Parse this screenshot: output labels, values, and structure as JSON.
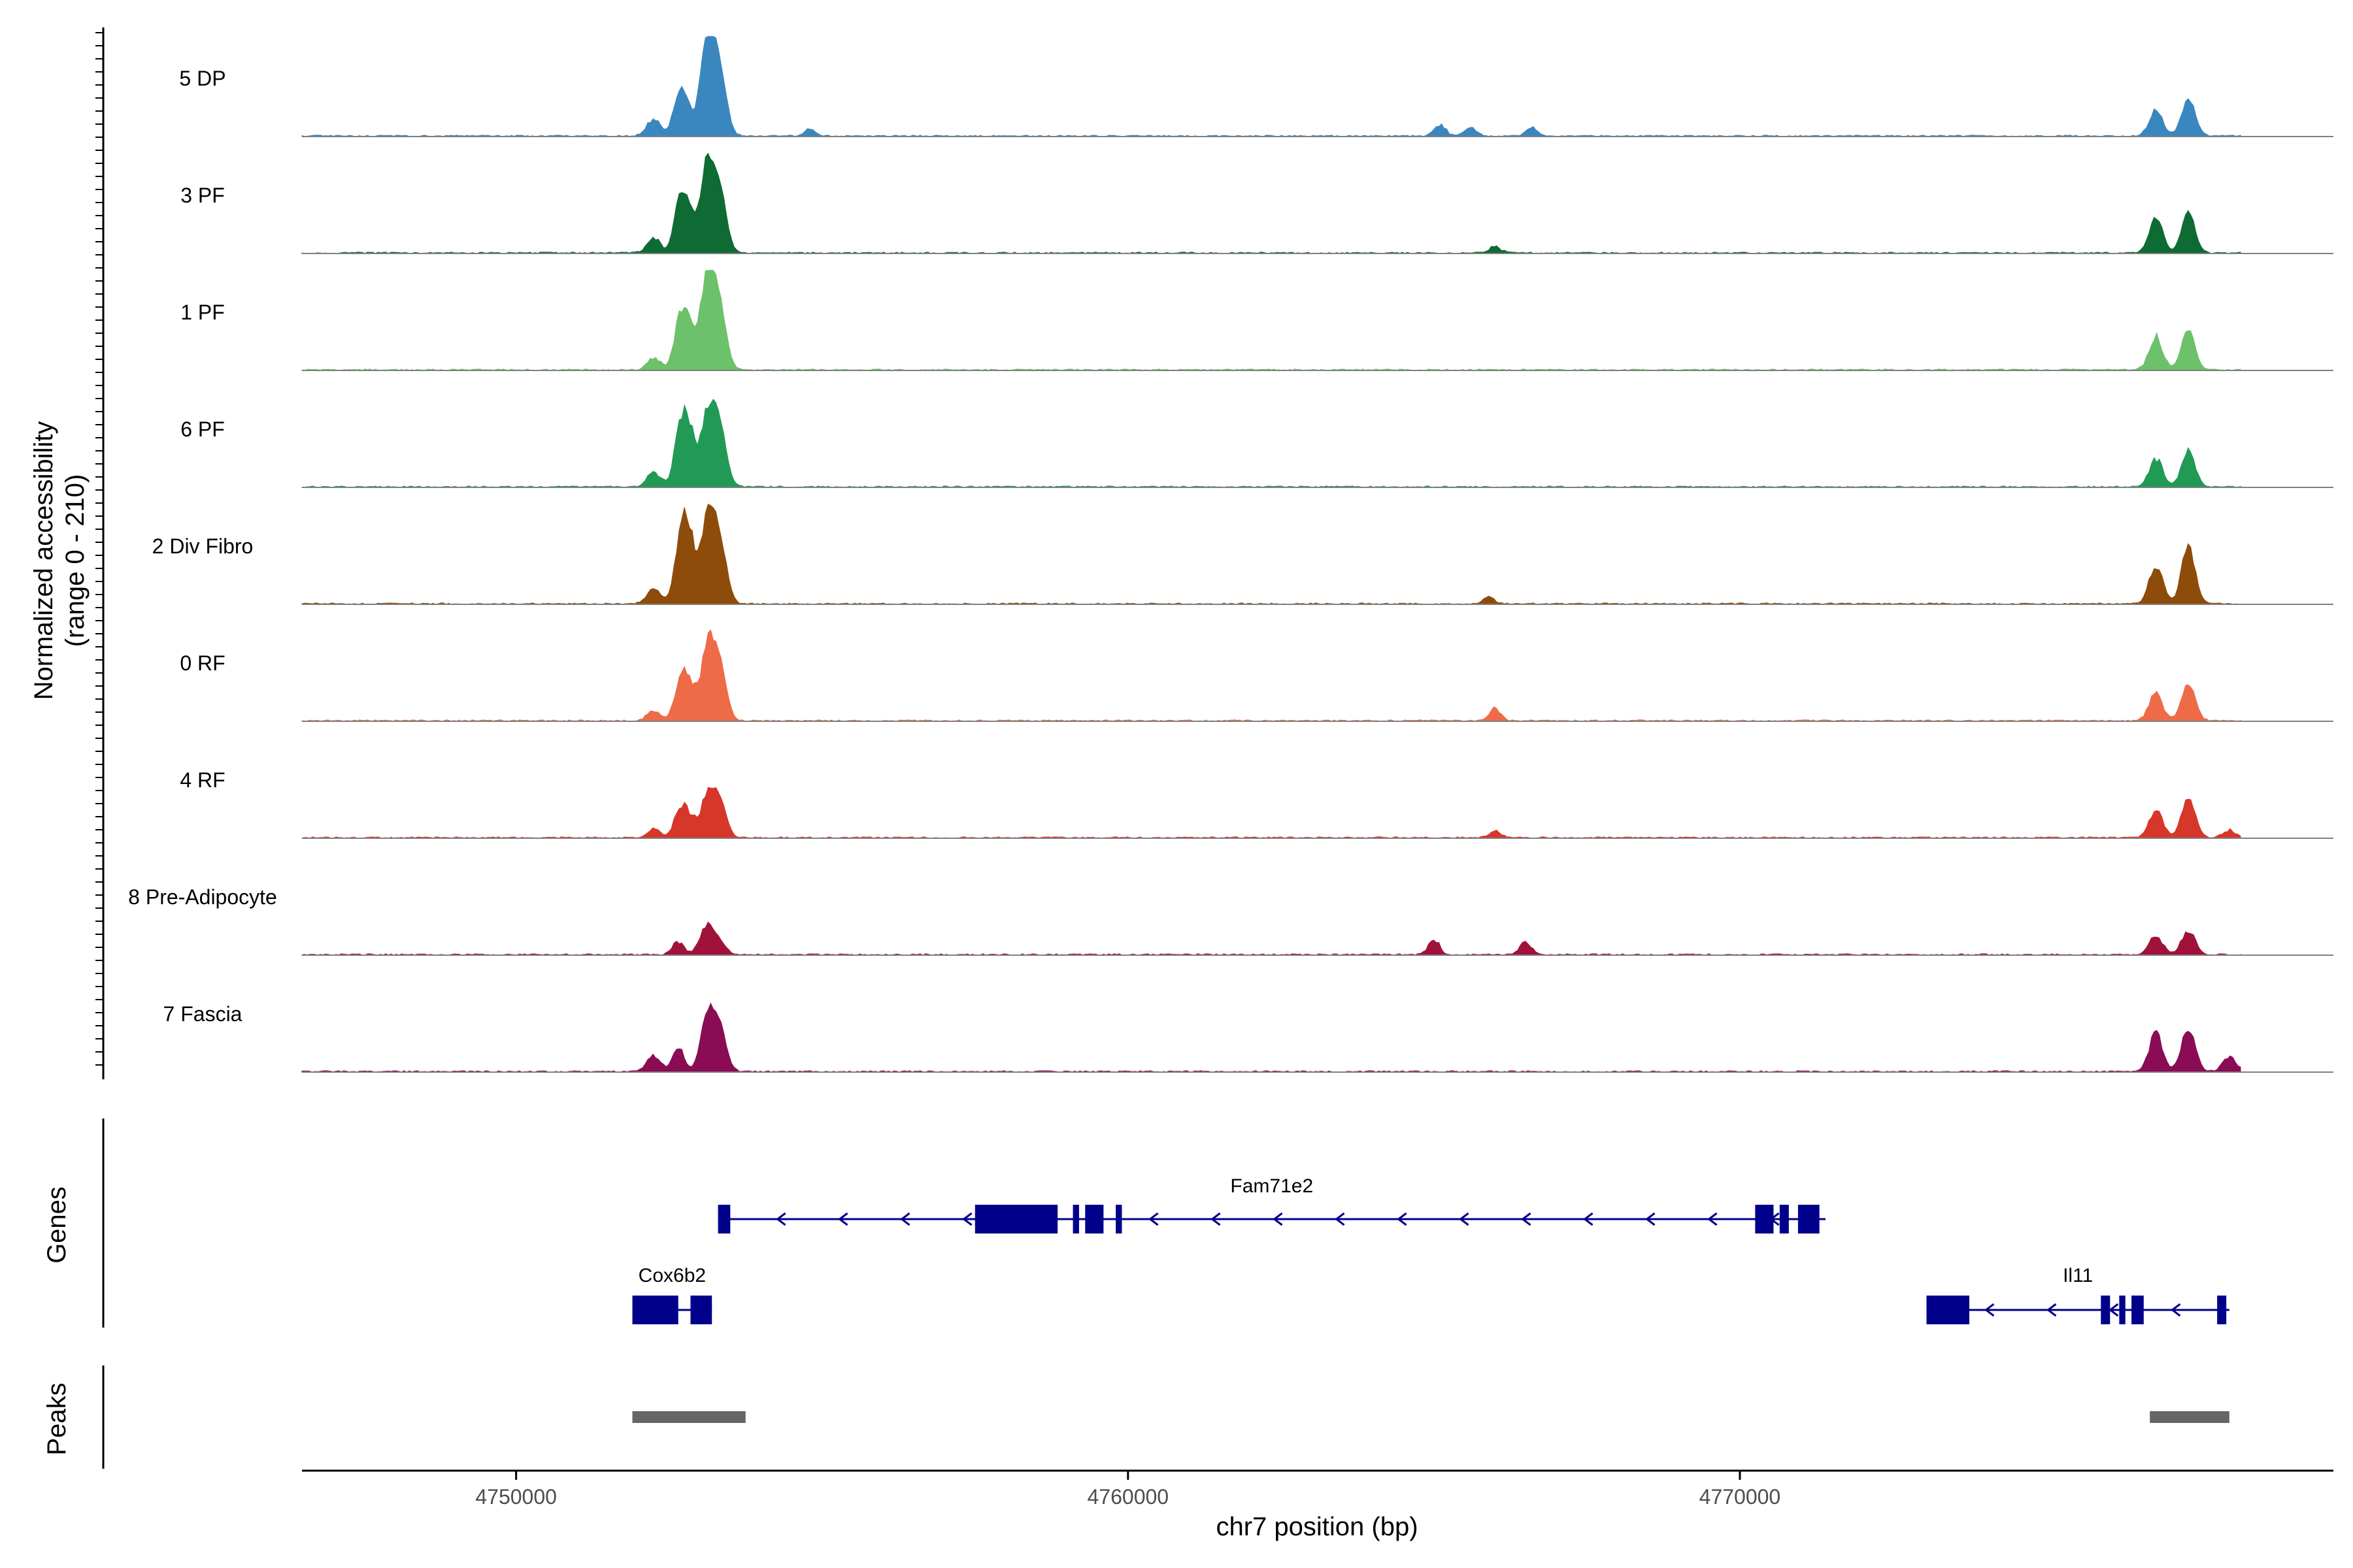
{
  "chart_data": {
    "type": "genome-browser-coverage",
    "title": "",
    "ylabel_line1": "Normalized accessibility",
    "ylabel_line2": "(range 0 - 210)",
    "y_range": [
      0,
      210
    ],
    "xlabel": "chr7 position (bp)",
    "x_range": [
      4746500,
      4779700
    ],
    "x_ticks": [
      4750000,
      4760000,
      4770000
    ],
    "x_tick_labels": [
      "4750000",
      "4760000",
      "4770000"
    ],
    "tracks": [
      {
        "label": "5 DP",
        "color": "#3A87C0",
        "peaks": [
          [
            4752650,
            2,
            70,
            0.28
          ],
          [
            4752800,
            3,
            58,
            0.3
          ],
          [
            4753130,
            3,
            200,
            0.18
          ],
          [
            4753330,
            3,
            130,
            0.1
          ],
          [
            4752250,
            3,
            35,
            0.3
          ],
          [
            4754800,
            1,
            18,
            0.5
          ],
          [
            4765100,
            2,
            25,
            0.4
          ],
          [
            4765600,
            2,
            18,
            0.3
          ],
          [
            4766600,
            2,
            18,
            0.3
          ],
          [
            4776800,
            3,
            58,
            0.3
          ],
          [
            4777330,
            3,
            78,
            0.15
          ]
        ]
      },
      {
        "label": "3 PF",
        "color": "#0E6B33",
        "peaks": [
          [
            4752650,
            2,
            70,
            0.28
          ],
          [
            4752800,
            3,
            108,
            0.2
          ],
          [
            4753130,
            3,
            182,
            0.18
          ],
          [
            4753330,
            3,
            120,
            0.1
          ],
          [
            4752250,
            3,
            30,
            0.3
          ],
          [
            4766000,
            2,
            15,
            0.5
          ],
          [
            4776800,
            3,
            74,
            0.25
          ],
          [
            4777330,
            3,
            85,
            0.15
          ]
        ]
      },
      {
        "label": "1 PF",
        "color": "#6CC16A",
        "peaks": [
          [
            4752650,
            2,
            65,
            0.28
          ],
          [
            4752800,
            3,
            110,
            0.22
          ],
          [
            4753130,
            3,
            208,
            0.18
          ],
          [
            4753330,
            3,
            120,
            0.1
          ],
          [
            4752250,
            3,
            25,
            0.3
          ],
          [
            4776800,
            3,
            70,
            0.3
          ],
          [
            4777330,
            3,
            82,
            0.2
          ]
        ]
      },
      {
        "label": "6 PF",
        "color": "#219A55",
        "peaks": [
          [
            4752650,
            2,
            70,
            0.28
          ],
          [
            4752800,
            3,
            138,
            0.2
          ],
          [
            4753130,
            3,
            150,
            0.22
          ],
          [
            4753330,
            3,
            120,
            0.1
          ],
          [
            4752250,
            3,
            32,
            0.3
          ],
          [
            4776800,
            3,
            60,
            0.3
          ],
          [
            4777330,
            3,
            78,
            0.2
          ]
        ]
      },
      {
        "label": "2 Div Fibro",
        "color": "#8D4C0A",
        "peaks": [
          [
            4752650,
            2,
            68,
            0.35
          ],
          [
            4752800,
            3,
            162,
            0.25
          ],
          [
            4753130,
            3,
            172,
            0.22
          ],
          [
            4753330,
            3,
            125,
            0.1
          ],
          [
            4752250,
            3,
            35,
            0.35
          ],
          [
            4765900,
            2,
            14,
            0.5
          ],
          [
            4776800,
            3,
            80,
            0.3
          ],
          [
            4777330,
            3,
            118,
            0.2
          ]
        ]
      },
      {
        "label": "0 RF",
        "color": "#EE6B48",
        "peaks": [
          [
            4752650,
            2,
            50,
            0.28
          ],
          [
            4752800,
            3,
            88,
            0.2
          ],
          [
            4753130,
            3,
            150,
            0.18
          ],
          [
            4753330,
            3,
            110,
            0.1
          ],
          [
            4752250,
            3,
            20,
            0.3
          ],
          [
            4766000,
            2,
            25,
            0.3
          ],
          [
            4776800,
            3,
            58,
            0.3
          ],
          [
            4777330,
            3,
            80,
            0.15
          ]
        ]
      },
      {
        "label": "4 RF",
        "color": "#D7362A",
        "peaks": [
          [
            4752650,
            2,
            40,
            0.28
          ],
          [
            4752800,
            3,
            50,
            0.25
          ],
          [
            4753130,
            3,
            88,
            0.18
          ],
          [
            4753330,
            3,
            70,
            0.1
          ],
          [
            4752250,
            3,
            18,
            0.3
          ],
          [
            4766000,
            2,
            15,
            0.4
          ],
          [
            4776800,
            3,
            60,
            0.25
          ],
          [
            4777330,
            3,
            85,
            0.15
          ],
          [
            4778000,
            3,
            16,
            0.4
          ]
        ]
      },
      {
        "label": "8 Pre-Adipocyte",
        "color": "#A1123A",
        "peaks": [
          [
            4752650,
            2,
            28,
            0.4
          ],
          [
            4753100,
            3,
            55,
            0.25
          ],
          [
            4753300,
            3,
            30,
            0.2
          ],
          [
            4765000,
            2,
            30,
            0.6
          ],
          [
            4766500,
            2,
            25,
            0.5
          ],
          [
            4776800,
            3,
            38,
            0.35
          ],
          [
            4777330,
            3,
            50,
            0.2
          ]
        ]
      },
      {
        "label": "7 Fascia",
        "color": "#8A0C55",
        "peaks": [
          [
            4752250,
            3,
            32,
            0.3
          ],
          [
            4752650,
            2,
            55,
            0.28
          ],
          [
            4753130,
            3,
            115,
            0.18
          ],
          [
            4753330,
            3,
            85,
            0.1
          ],
          [
            4776800,
            3,
            80,
            0.3
          ],
          [
            4777330,
            3,
            90,
            0.2
          ],
          [
            4778000,
            3,
            30,
            0.4
          ]
        ]
      }
    ],
    "genes_track_label": "Genes",
    "genes": [
      {
        "name": "Fam71e2",
        "start": 4753300,
        "end": 4771400,
        "strand": "-",
        "row": 0,
        "exons": [
          [
            4753300,
            4753500
          ],
          [
            4757500,
            4758850
          ],
          [
            4759100,
            4759200
          ],
          [
            4759300,
            4759600
          ],
          [
            4759800,
            4759900
          ],
          [
            4770250,
            4770550
          ],
          [
            4770650,
            4770800
          ],
          [
            4770950,
            4771300
          ]
        ]
      },
      {
        "name": "Cox6b2",
        "start": 4751900,
        "end": 4753200,
        "strand": "-",
        "row": 1,
        "exons": [
          [
            4751900,
            4752650
          ],
          [
            4752850,
            4753200
          ]
        ]
      },
      {
        "name": "Il11",
        "start": 4773050,
        "end": 4778000,
        "strand": "-",
        "row": 1,
        "exons": [
          [
            4773050,
            4773750
          ],
          [
            4775900,
            4776050
          ],
          [
            4776200,
            4776300
          ],
          [
            4776400,
            4776600
          ],
          [
            4777800,
            4777950
          ]
        ]
      }
    ],
    "peaks_track_label": "Peaks",
    "peak_regions": [
      [
        4751900,
        4753750
      ],
      [
        4776700,
        4778000
      ]
    ]
  }
}
